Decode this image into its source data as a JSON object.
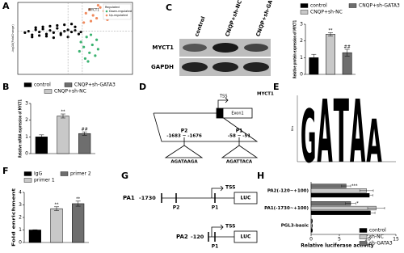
{
  "panel_labels": [
    "A",
    "B",
    "C",
    "D",
    "E",
    "F",
    "G",
    "H"
  ],
  "chart_data": [
    {
      "type": "scatter",
      "y_label": "-log10(FoldChange)",
      "legend_title": "Regulated",
      "annotation": "MYCT1",
      "xlim": [
        -8,
        8
      ],
      "ylim": [
        0,
        10
      ],
      "vlines": [
        -1,
        1
      ],
      "hlines": [
        6
      ],
      "series": [
        {
          "name": "Down-regulated",
          "color": "#3cb371",
          "x": [
            0.8,
            1.2,
            1.6,
            2,
            2.4,
            2.8,
            3.2,
            1.4,
            2.2,
            3,
            0.6,
            1.8
          ],
          "values": [
            4.5,
            3.8,
            5.2,
            3,
            4.1,
            2.6,
            3.5,
            2.2,
            5.5,
            4.8,
            3.2,
            1.8
          ]
        },
        {
          "name": "Up-regulated",
          "color": "#f08a5d",
          "x": [
            1.5,
            2,
            2.5,
            3,
            3.5,
            4,
            4.5,
            5,
            2.2,
            3.2,
            1.2,
            4.2
          ],
          "values": [
            8.5,
            9,
            8.2,
            7.8,
            9.3,
            8.8,
            7.6,
            8.1,
            7.4,
            9.6,
            7.2,
            9.1
          ]
        },
        {
          "color": "#000000",
          "x": [
            -7,
            -6.5,
            -6,
            -5.5,
            -5,
            -4.5,
            -4,
            -3.5,
            -3,
            -2.5,
            -2,
            -1.5,
            -1,
            -0.5,
            0,
            0.5,
            -6,
            -5,
            -4,
            -3,
            -2,
            -1,
            0,
            -5.5,
            -4.5,
            -3.5,
            -2.5,
            -1.5,
            -0.5,
            0.8
          ],
          "values": [
            5.8,
            6.0,
            5.5,
            6.2,
            5.9,
            6.3,
            5.6,
            6.1,
            5.8,
            6.4,
            5.7,
            6.0,
            6.2,
            5.9,
            6.1,
            5.6,
            5.2,
            5.4,
            5.3,
            5.1,
            5.5,
            5.2,
            6.6,
            6.5,
            6.6,
            6.7,
            6.8,
            6.9,
            7.0,
            5.9
          ]
        }
      ]
    },
    {
      "type": "bar",
      "y_label": "Relative mRNA expression of MYCT1",
      "categories": [
        "control",
        "CNQP+sh-NC",
        "CNQP+sh-GATA3"
      ],
      "values": [
        1.0,
        2.25,
        1.2
      ],
      "errors": [
        0.12,
        0.12,
        0.1
      ],
      "colors": [
        "#000000",
        "#c8c8c8",
        "#6e6e6e"
      ],
      "significance": [
        null,
        "**",
        "##"
      ],
      "ylim": [
        0,
        3
      ],
      "yticks": [
        0,
        1,
        2,
        3
      ]
    },
    {
      "type": "bar",
      "y_label": "Relative protein expression of MYCT1",
      "categories": [
        "control",
        "CNQP+sh-NC",
        "CNQP+sh-GATA3"
      ],
      "values": [
        1.0,
        2.4,
        1.3
      ],
      "errors": [
        0.2,
        0.1,
        0.2
      ],
      "colors": [
        "#000000",
        "#c8c8c8",
        "#6e6e6e"
      ],
      "significance": [
        null,
        "**",
        "##"
      ],
      "ylim": [
        0,
        3
      ],
      "yticks": [
        0,
        1,
        2,
        3
      ]
    },
    {
      "type": "bar",
      "y_label": "Fold enrichment",
      "categories": [
        "IgG",
        "primer 1",
        "primer 2"
      ],
      "values": [
        1.0,
        2.7,
        3.1
      ],
      "errors": [
        0.02,
        0.15,
        0.2
      ],
      "colors": [
        "#000000",
        "#c8c8c8",
        "#6e6e6e"
      ],
      "significance": [
        null,
        "**",
        "**"
      ],
      "ylim": [
        0,
        4
      ],
      "yticks": [
        0,
        1,
        2,
        3,
        4
      ]
    },
    {
      "type": "barh",
      "x_label": "Relative luciferase activity",
      "categories": [
        "PA2(-120~+100)",
        "PA1(-1730~+100)",
        "PGL3-basic"
      ],
      "xlim": [
        0,
        15
      ],
      "xticks": [
        0,
        5,
        10,
        15
      ],
      "series": [
        {
          "name": "control",
          "color": "#000000",
          "values": [
            10.3,
            10.5,
            0.2
          ],
          "errors": [
            0.6,
            0.8,
            0.05
          ],
          "significance": [
            null,
            null,
            null
          ]
        },
        {
          "name": "sh-NC",
          "color": "#c8c8c8",
          "values": [
            9.8,
            11.5,
            0.2
          ],
          "errors": [
            1.2,
            1.5,
            0.05
          ],
          "significance": [
            null,
            null,
            null
          ]
        },
        {
          "name": "sh-GATA3",
          "color": "#6e6e6e",
          "values": [
            6.2,
            7.0,
            0.2
          ],
          "errors": [
            0.8,
            0.9,
            0.05
          ],
          "significance": [
            "***",
            "*",
            null
          ]
        }
      ]
    }
  ],
  "blot": {
    "columns": [
      "control",
      "CNQP+sh-NC",
      "CNQP+sh-GATA3"
    ],
    "rows": [
      "MYCT1",
      "GAPDH"
    ]
  },
  "promoter": {
    "gene": "MYCT1",
    "tss": "TSS",
    "exon": "Exon1",
    "p2": "P2",
    "p2_range": "-1683 ~ -1676",
    "p1": "P1",
    "p1_range": "-58 ~ -51",
    "p2_seq": "AGATAAGA",
    "p1_seq": "AGATTACA"
  },
  "logo": {
    "y_label": "Bits",
    "ylim": [
      0,
      2
    ],
    "letters": [
      "G",
      "A",
      "T",
      "A",
      "A"
    ],
    "heights": [
      1.6,
      1.9,
      1.9,
      1.9,
      1.3
    ],
    "colors": [
      "#f0a000",
      "#2a9d3a",
      "#d62728",
      "#2a9d3a",
      "#2a9d3a"
    ]
  },
  "constructs": {
    "pa1": "PA1",
    "pa1_start": "-1730",
    "pa2": "PA2",
    "pa2_start": "-120",
    "p2": "P2",
    "p1": "P1",
    "tss": "TSS",
    "reporter": "LUC"
  }
}
